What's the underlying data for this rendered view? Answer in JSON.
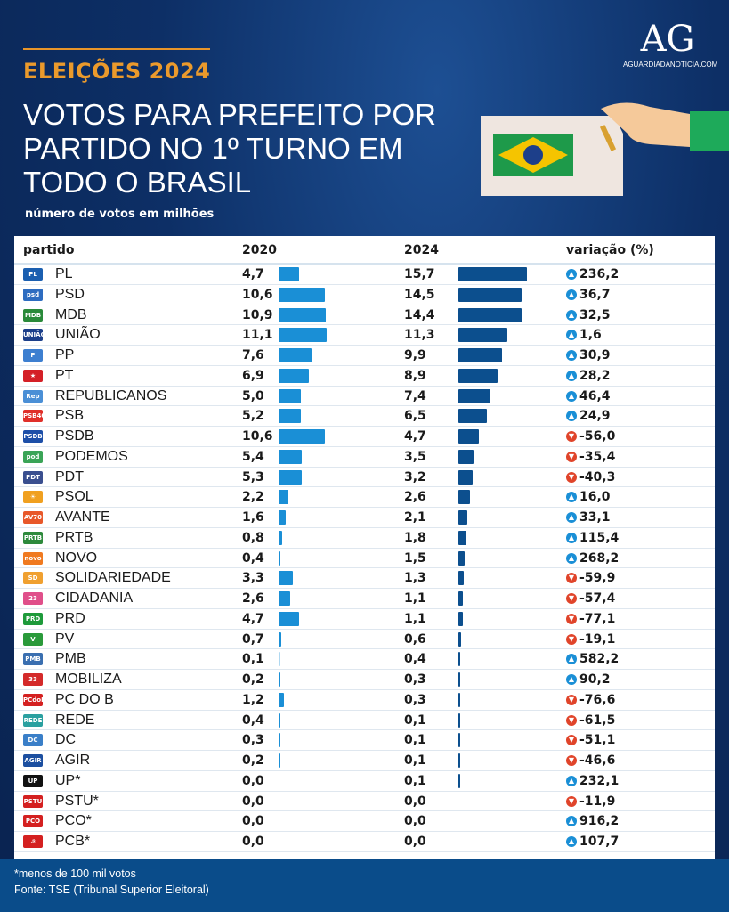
{
  "header": {
    "kicker": "ELEIÇÕES 2024",
    "title": "VOTOS PARA PREFEITO POR PARTIDO NO 1º TURNO EM TODO O BRASIL",
    "subtitle": "número de votos em milhões",
    "brand_mark": "AG",
    "brand_site": "AGUARDIADANOTICIA.COM"
  },
  "colors": {
    "bar_2020": "#1a8fd6",
    "bar_2024": "#0c4f8e",
    "up": "#1a8fd6",
    "down": "#e0442a"
  },
  "chart_data": {
    "type": "table",
    "columns": [
      "partido",
      "2020",
      "2024",
      "variação (%)"
    ],
    "unit": "milhões de votos",
    "rows": [
      {
        "party": "PL",
        "v2020": "4,7",
        "v2024": "15,7",
        "var": "236,2",
        "dir": "up",
        "logo": "PL",
        "color": "#1b5fb0"
      },
      {
        "party": "PSD",
        "v2020": "10,6",
        "v2024": "14,5",
        "var": "36,7",
        "dir": "up",
        "logo": "psd",
        "color": "#2d6cc0"
      },
      {
        "party": "MDB",
        "v2020": "10,9",
        "v2024": "14,4",
        "var": "32,5",
        "dir": "up",
        "logo": "MDB",
        "color": "#2a8a3a"
      },
      {
        "party": "UNIÃO",
        "v2020": "11,1",
        "v2024": "11,3",
        "var": "1,6",
        "dir": "up",
        "logo": "UNIÃO",
        "color": "#1c3f8a"
      },
      {
        "party": "PP",
        "v2020": "7,6",
        "v2024": "9,9",
        "var": "30,9",
        "dir": "up",
        "logo": "P",
        "color": "#3d7fd0"
      },
      {
        "party": "PT",
        "v2020": "6,9",
        "v2024": "8,9",
        "var": "28,2",
        "dir": "up",
        "logo": "★",
        "color": "#d42027"
      },
      {
        "party": "REPUBLICANOS",
        "v2020": "5,0",
        "v2024": "7,4",
        "var": "46,4",
        "dir": "up",
        "logo": "Rep",
        "color": "#4a8fd6"
      },
      {
        "party": "PSB",
        "v2020": "5,2",
        "v2024": "6,5",
        "var": "24,9",
        "dir": "up",
        "logo": "PSB40",
        "color": "#e0302a"
      },
      {
        "party": "PSDB",
        "v2020": "10,6",
        "v2024": "4,7",
        "var": "-56,0",
        "dir": "down",
        "logo": "PSDB",
        "color": "#1d4fa8"
      },
      {
        "party": "PODEMOS",
        "v2020": "5,4",
        "v2024": "3,5",
        "var": "-35,4",
        "dir": "down",
        "logo": "pod",
        "color": "#3aa457"
      },
      {
        "party": "PDT",
        "v2020": "5,3",
        "v2024": "3,2",
        "var": "-40,3",
        "dir": "down",
        "logo": "PDT",
        "color": "#3a4f8f"
      },
      {
        "party": "PSOL",
        "v2020": "2,2",
        "v2024": "2,6",
        "var": "16,0",
        "dir": "up",
        "logo": "☀",
        "color": "#f0a020"
      },
      {
        "party": "AVANTE",
        "v2020": "1,6",
        "v2024": "2,1",
        "var": "33,1",
        "dir": "up",
        "logo": "AV70",
        "color": "#e8582a"
      },
      {
        "party": "PRTB",
        "v2020": "0,8",
        "v2024": "1,8",
        "var": "115,4",
        "dir": "up",
        "logo": "PRTB",
        "color": "#2e8a3c"
      },
      {
        "party": "NOVO",
        "v2020": "0,4",
        "v2024": "1,5",
        "var": "268,2",
        "dir": "up",
        "logo": "novo",
        "color": "#f07a20"
      },
      {
        "party": "SOLIDARIEDADE",
        "v2020": "3,3",
        "v2024": "1,3",
        "var": "-59,9",
        "dir": "down",
        "logo": "SD",
        "color": "#f0a030"
      },
      {
        "party": "CIDADANIA",
        "v2020": "2,6",
        "v2024": "1,1",
        "var": "-57,4",
        "dir": "down",
        "logo": "23",
        "color": "#e04f8a"
      },
      {
        "party": "PRD",
        "v2020": "4,7",
        "v2024": "1,1",
        "var": "-77,1",
        "dir": "down",
        "logo": "PRD",
        "color": "#1e9a3a"
      },
      {
        "party": "PV",
        "v2020": "0,7",
        "v2024": "0,6",
        "var": "-19,1",
        "dir": "down",
        "logo": "V",
        "color": "#2a9a3a"
      },
      {
        "party": "PMB",
        "v2020": "0,1",
        "v2024": "0,4",
        "var": "582,2",
        "dir": "up",
        "logo": "PMB",
        "color": "#3a6fb0"
      },
      {
        "party": "MOBILIZA",
        "v2020": "0,2",
        "v2024": "0,3",
        "var": "90,2",
        "dir": "up",
        "logo": "33",
        "color": "#d42a2a"
      },
      {
        "party": "PC DO B",
        "v2020": "1,2",
        "v2024": "0,3",
        "var": "-76,6",
        "dir": "down",
        "logo": "PCdoB",
        "color": "#d42020"
      },
      {
        "party": "REDE",
        "v2020": "0,4",
        "v2024": "0,1",
        "var": "-61,5",
        "dir": "down",
        "logo": "REDE",
        "color": "#2aa0a0"
      },
      {
        "party": "DC",
        "v2020": "0,3",
        "v2024": "0,1",
        "var": "-51,1",
        "dir": "down",
        "logo": "DC",
        "color": "#3a7fc8"
      },
      {
        "party": "AGIR",
        "v2020": "0,2",
        "v2024": "0,1",
        "var": "-46,6",
        "dir": "down",
        "logo": "AGIR",
        "color": "#1c4fa0"
      },
      {
        "party": "UP*",
        "v2020": "0,0",
        "v2024": "0,1",
        "var": "232,1",
        "dir": "up",
        "logo": "UP",
        "color": "#111111"
      },
      {
        "party": "PSTU*",
        "v2020": "0,0",
        "v2024": "0,0",
        "var": "-11,9",
        "dir": "down",
        "logo": "PSTU",
        "color": "#d42020"
      },
      {
        "party": "PCO*",
        "v2020": "0,0",
        "v2024": "0,0",
        "var": "916,2",
        "dir": "up",
        "logo": "PCO",
        "color": "#d42020"
      },
      {
        "party": "PCB*",
        "v2020": "0,0",
        "v2024": "0,0",
        "var": "107,7",
        "dir": "up",
        "logo": "☭",
        "color": "#d42020"
      }
    ]
  },
  "footer": {
    "note": "*menos de 100 mil votos",
    "source": "Fonte: TSE (Tribunal Superior Eleitoral)"
  }
}
